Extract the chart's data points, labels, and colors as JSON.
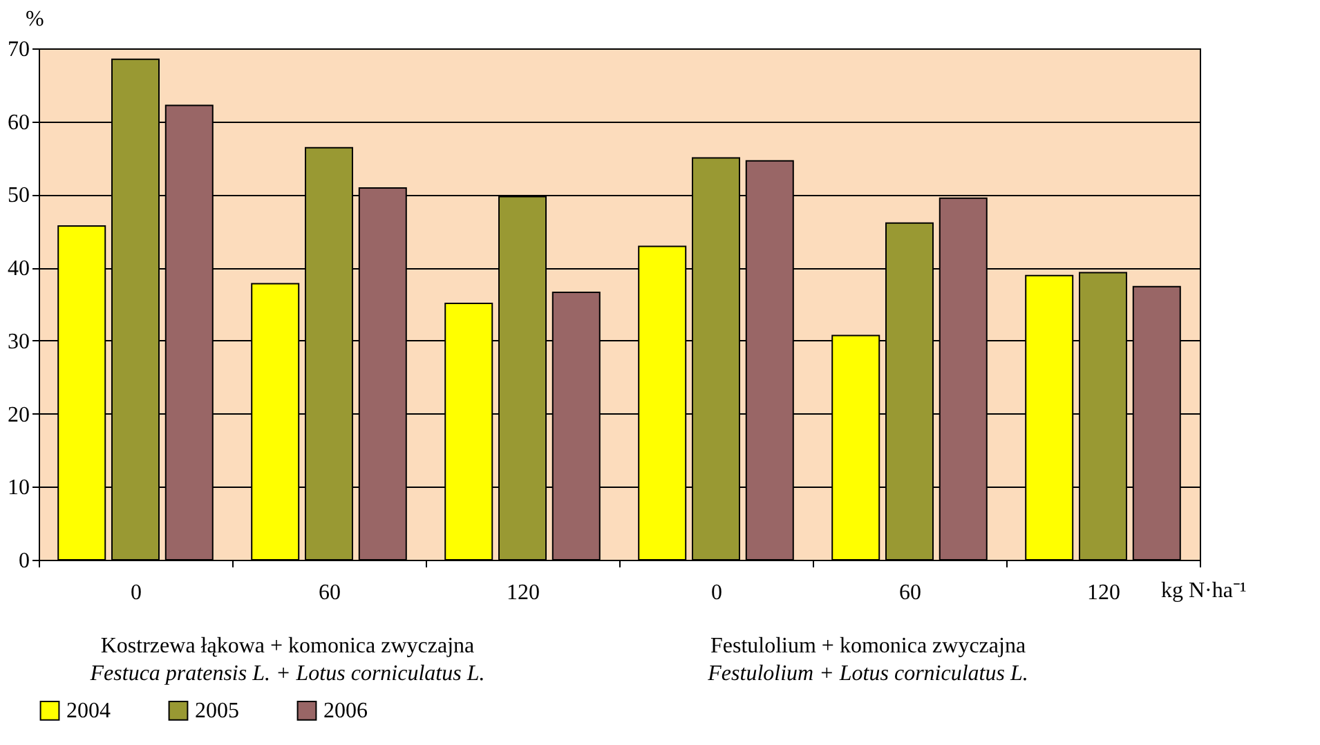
{
  "chart_data": {
    "type": "bar",
    "ylabel": "%",
    "xlabel": "kg N·ha⁻¹",
    "categories": [
      "0",
      "60",
      "120",
      "0",
      "60",
      "120"
    ],
    "series": [
      {
        "name": "2004",
        "color": "#ffff00",
        "values": [
          45.7,
          37.8,
          35.1,
          42.9,
          30.7,
          38.9
        ]
      },
      {
        "name": "2005",
        "color": "#999933",
        "values": [
          68.5,
          56.4,
          49.7,
          55.0,
          46.1,
          39.3
        ]
      },
      {
        "name": "2006",
        "color": "#996666",
        "values": [
          62.2,
          50.9,
          36.6,
          54.6,
          49.5,
          37.4
        ]
      }
    ],
    "ylim": [
      0,
      70
    ],
    "yticks": [
      0,
      10,
      20,
      30,
      40,
      50,
      60,
      70
    ],
    "grid": "y",
    "legend": "bottom",
    "annotations": [
      "Kostrzewa łąkowa + komonica zwyczajna",
      "Festuca pratensis L. + Lotus corniculatus L.",
      "Festulolium + komonica zwyczajna",
      "Festulolium + Lotus corniculatus L."
    ]
  }
}
